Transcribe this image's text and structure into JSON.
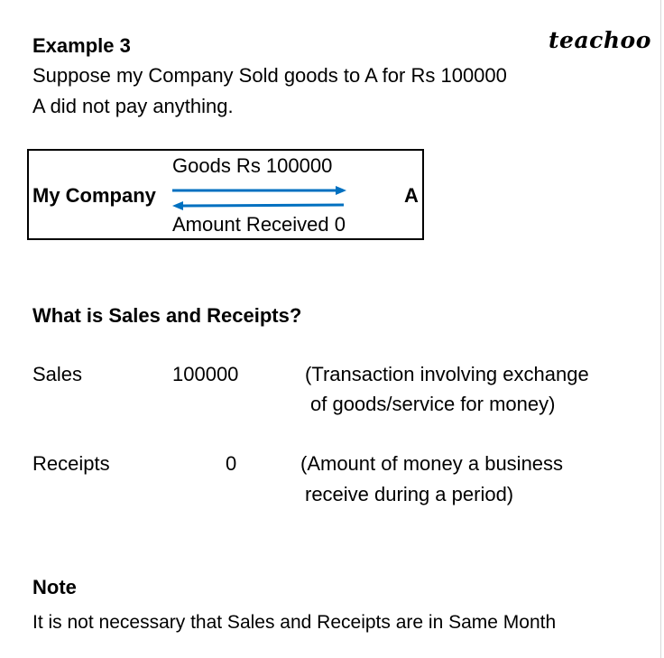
{
  "logo": "teachoo",
  "title": "Example 3",
  "intro": [
    "Suppose my Company Sold goods to A for Rs 100000",
    "A did not pay anything."
  ],
  "diagram": {
    "left": "My Company",
    "right": "A",
    "top_label": "Goods  Rs 100000",
    "bottom_label": "Amount Received 0",
    "arrow_color": "#0070C0"
  },
  "question": "What is Sales and Receipts?",
  "rows": [
    {
      "label": "Sales",
      "value": "100000",
      "desc": [
        "(Transaction involving exchange",
        "of goods/service for money)"
      ]
    },
    {
      "label": "Receipts",
      "value": "0",
      "desc": [
        "(Amount of money a business",
        "receive during a period)"
      ]
    }
  ],
  "note": {
    "title": "Note",
    "text": "It is not necessary that Sales and Receipts are in ",
    "text_end": "Same Month"
  }
}
